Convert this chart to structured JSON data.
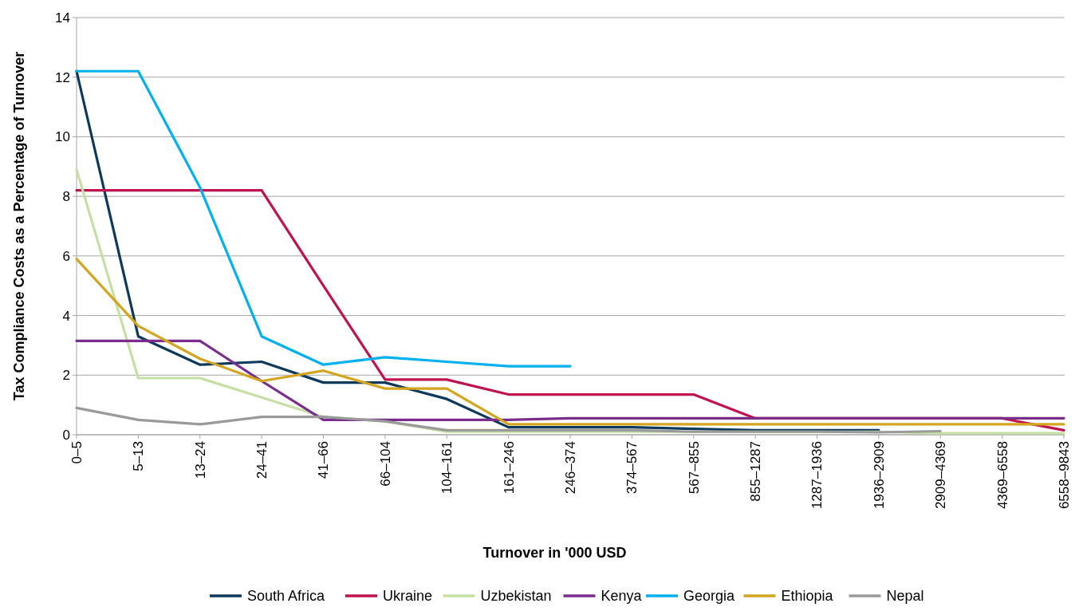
{
  "chart_data": {
    "type": "line",
    "xlabel": "Turnover in '000 USD",
    "ylabel": "Tax Compliance Costs as a Percentage of Turnover",
    "categories": [
      "0–5",
      "5–13",
      "13–24",
      "24–41",
      "41–66",
      "66–104",
      "104–161",
      "161–246",
      "246–374",
      "374–567",
      "567–855",
      "855–1287",
      "1287–1936",
      "1936–2909",
      "2909–4369",
      "4369–6558",
      "6558–9843"
    ],
    "ylim": [
      0,
      14
    ],
    "yticks": [
      0,
      2,
      4,
      6,
      8,
      10,
      12,
      14
    ],
    "grid": "y",
    "legend": "bottom",
    "marker": "none",
    "line_style": "solid",
    "series": [
      {
        "name": "South Africa",
        "color": "#0d3a5c",
        "values": [
          12.2,
          3.3,
          2.35,
          2.45,
          1.75,
          1.75,
          1.2,
          0.25,
          0.25,
          0.25,
          0.2,
          0.15,
          0.15,
          0.15,
          null,
          null,
          null
        ]
      },
      {
        "name": "Ukraine",
        "color": "#c0124f",
        "values": [
          8.2,
          8.2,
          8.2,
          8.2,
          5.0,
          1.85,
          1.85,
          1.35,
          1.35,
          1.35,
          1.35,
          0.55,
          0.55,
          0.55,
          0.55,
          0.55,
          0.15
        ]
      },
      {
        "name": "Uzbekistan",
        "color": "#c6e0a4",
        "values": [
          8.9,
          1.9,
          1.9,
          1.25,
          0.6,
          0.45,
          0.1,
          0.1,
          0.1,
          0.1,
          0.1,
          0.1,
          0.1,
          0.1,
          0.05,
          0.05,
          0.05
        ]
      },
      {
        "name": "Kenya",
        "color": "#7b2d8e",
        "values": [
          3.15,
          3.15,
          3.15,
          1.8,
          0.5,
          0.5,
          0.5,
          0.5,
          0.55,
          0.55,
          0.55,
          0.55,
          0.55,
          0.55,
          0.55,
          0.55,
          0.55
        ]
      },
      {
        "name": "Georgia",
        "color": "#00b0f0",
        "values": [
          12.2,
          12.2,
          8.3,
          3.3,
          2.35,
          2.6,
          2.45,
          2.3,
          2.3,
          null,
          null,
          null,
          null,
          null,
          null,
          null,
          null
        ]
      },
      {
        "name": "Ethiopia",
        "color": "#d4a520",
        "values": [
          5.9,
          3.65,
          2.55,
          1.8,
          2.15,
          1.55,
          1.55,
          0.35,
          0.35,
          0.35,
          0.35,
          0.35,
          0.35,
          0.35,
          0.35,
          0.35,
          0.35
        ]
      },
      {
        "name": "Nepal",
        "color": "#9a9a9a",
        "values": [
          0.9,
          0.5,
          0.35,
          0.6,
          0.6,
          0.45,
          0.15,
          0.15,
          0.15,
          0.15,
          0.1,
          0.1,
          0.1,
          0.08,
          0.12,
          null,
          null
        ]
      }
    ]
  }
}
